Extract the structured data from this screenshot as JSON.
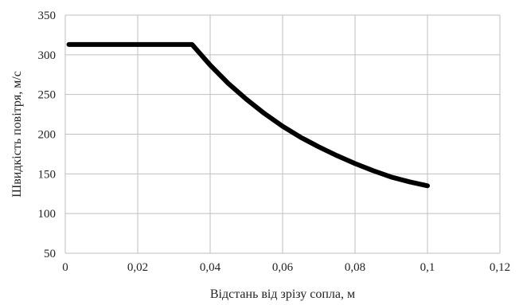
{
  "chart_data": {
    "type": "line",
    "title": "",
    "xlabel": "Відстань від зрізу сопла, м",
    "ylabel": "Швидкість повітря, м/с",
    "xlim": [
      0,
      0.12
    ],
    "ylim": [
      50,
      350
    ],
    "grid": true,
    "legend": "none",
    "x_ticks": [
      "0",
      "0,02",
      "0,04",
      "0,06",
      "0,08",
      "0,1",
      "0,12"
    ],
    "y_ticks": [
      "50",
      "100",
      "150",
      "200",
      "250",
      "300",
      "350"
    ],
    "x_tick_values": [
      0,
      0.02,
      0.04,
      0.06,
      0.08,
      0.1,
      0.12
    ],
    "y_tick_values": [
      50,
      100,
      150,
      200,
      250,
      300,
      350
    ],
    "series": [
      {
        "color": "#000000",
        "x": [
          0.001,
          0.01,
          0.02,
          0.03,
          0.035,
          0.0375,
          0.04,
          0.045,
          0.05,
          0.055,
          0.06,
          0.065,
          0.07,
          0.075,
          0.08,
          0.085,
          0.09,
          0.095,
          0.1
        ],
        "y": [
          313,
          313,
          313,
          313,
          313,
          300,
          287,
          264,
          244,
          226,
          210,
          196,
          184,
          173,
          163,
          154,
          146,
          140,
          135
        ]
      }
    ],
    "colors": {
      "grid": "#bfbfbf",
      "line": "#000000",
      "text": "#222222"
    }
  }
}
